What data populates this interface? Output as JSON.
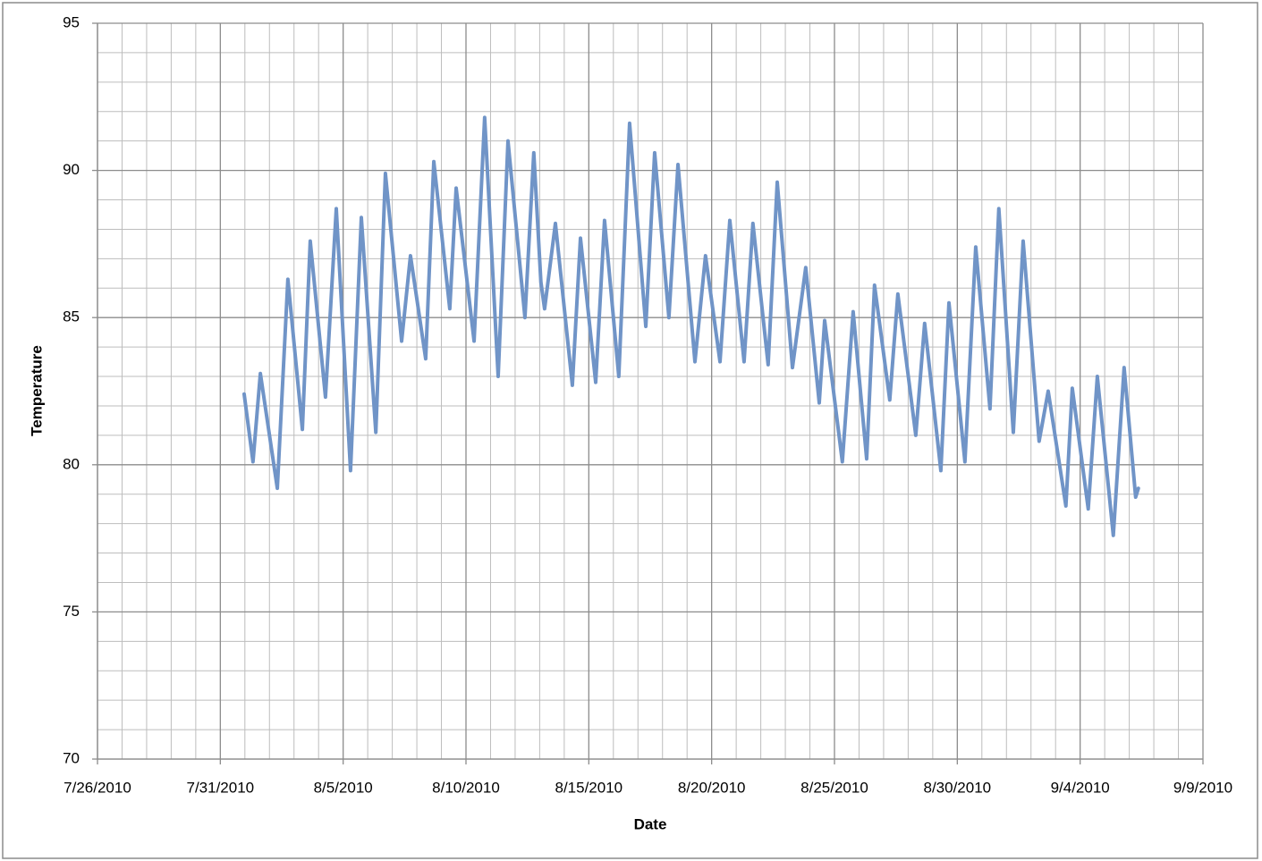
{
  "chart_data": {
    "type": "line",
    "xlabel": "Date",
    "ylabel": "Temperature",
    "color": "#7094c7",
    "x": [
      40390.97,
      40391.33,
      40391.63,
      40392.32,
      40392.75,
      40393.34,
      40393.66,
      40394.28,
      40394.72,
      40395.3,
      40395.74,
      40396.33,
      40396.72,
      40397.38,
      40397.74,
      40398.36,
      40398.69,
      40399.34,
      40399.6,
      40400.33,
      40400.76,
      40401.31,
      40401.71,
      40402.4,
      40402.76,
      40403.05,
      40403.2,
      40403.64,
      40404.33,
      40404.66,
      40405.28,
      40405.64,
      40406.22,
      40406.66,
      40407.32,
      40407.68,
      40408.26,
      40408.63,
      40409.32,
      40409.75,
      40410.34,
      40410.74,
      40411.32,
      40411.68,
      40412.3,
      40412.67,
      40413.29,
      40413.83,
      40414.38,
      40414.6,
      40415.32,
      40415.76,
      40416.31,
      40416.63,
      40417.25,
      40417.58,
      40418.31,
      40418.67,
      40419.33,
      40419.66,
      40420.31,
      40420.75,
      40421.33,
      40421.69,
      40422.28,
      40422.68,
      40423.33,
      40423.7,
      40424.42,
      40424.68,
      40425.33,
      40425.7,
      40426.35,
      40426.79,
      40427.26,
      40427.37
    ],
    "values": [
      82.4,
      80.1,
      83.1,
      79.2,
      86.3,
      81.2,
      87.6,
      82.3,
      88.7,
      79.8,
      88.4,
      81.1,
      89.9,
      84.2,
      87.1,
      83.6,
      90.3,
      85.3,
      89.4,
      84.2,
      91.8,
      83.0,
      91.0,
      85.0,
      90.6,
      86.2,
      85.3,
      88.2,
      82.7,
      87.7,
      82.8,
      88.3,
      83.0,
      91.6,
      84.7,
      90.6,
      85.0,
      90.2,
      83.5,
      87.1,
      83.5,
      88.3,
      83.5,
      88.2,
      83.4,
      89.6,
      83.3,
      86.7,
      82.1,
      84.9,
      80.1,
      85.2,
      80.2,
      86.1,
      82.2,
      85.8,
      81.0,
      84.8,
      79.8,
      85.5,
      80.1,
      87.4,
      81.9,
      88.7,
      81.1,
      87.6,
      80.8,
      82.5,
      78.6,
      82.6,
      78.5,
      83.0,
      77.6,
      83.3,
      78.9,
      79.2
    ],
    "xlim": [
      40385,
      40430
    ],
    "xticks": [
      {
        "value": 40385,
        "label": "7/26/2010"
      },
      {
        "value": 40390,
        "label": "7/31/2010"
      },
      {
        "value": 40395,
        "label": "8/5/2010"
      },
      {
        "value": 40400,
        "label": "8/10/2010"
      },
      {
        "value": 40405,
        "label": "8/15/2010"
      },
      {
        "value": 40410,
        "label": "8/20/2010"
      },
      {
        "value": 40415,
        "label": "8/25/2010"
      },
      {
        "value": 40420,
        "label": "8/30/2010"
      },
      {
        "value": 40425,
        "label": "9/4/2010"
      },
      {
        "value": 40430,
        "label": "9/9/2010"
      }
    ],
    "x_minor_ticks": [
      40386,
      40387,
      40388,
      40389,
      40391,
      40392,
      40393,
      40394,
      40396,
      40397,
      40398,
      40399,
      40401,
      40402,
      40403,
      40404,
      40406,
      40407,
      40408,
      40409,
      40411,
      40412,
      40413,
      40414,
      40416,
      40417,
      40418,
      40419,
      40421,
      40422,
      40423,
      40424,
      40426,
      40427,
      40428,
      40429
    ],
    "ylim": [
      70,
      95
    ],
    "yticks": [
      70,
      75,
      80,
      85,
      90,
      95
    ],
    "y_minor_ticks": [
      71,
      72,
      73,
      74,
      76,
      77,
      78,
      79,
      81,
      82,
      83,
      84,
      86,
      87,
      88,
      89,
      91,
      92,
      93,
      94
    ],
    "grid": true
  }
}
